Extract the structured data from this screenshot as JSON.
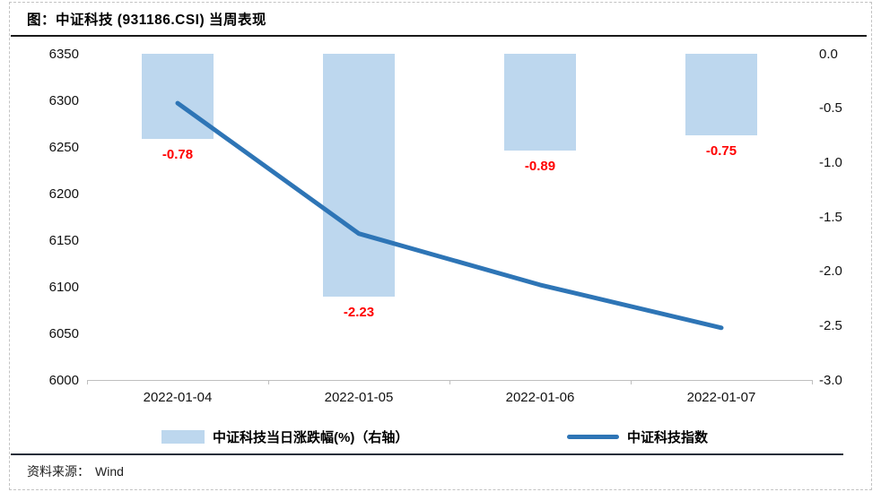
{
  "page": {
    "title": "图：中证科技 (931186.CSI) 当周表现",
    "source_label": "资料来源：",
    "source_value": "Wind"
  },
  "colors": {
    "bar_fill": "#BDD7EE",
    "line_stroke": "#2E75B6",
    "data_label": "#FF0000",
    "axis_line": "#BFBFBF",
    "text": "#111111"
  },
  "legend": [
    {
      "type": "bar",
      "label": "中证科技当日涨跌幅(%)（右轴）"
    },
    {
      "type": "line",
      "label": "中证科技指数"
    }
  ],
  "chart_data": {
    "type": "bar+line combo",
    "categories": [
      "2022-01-04",
      "2022-01-05",
      "2022-01-06",
      "2022-01-07"
    ],
    "series": [
      {
        "name": "中证科技当日涨跌幅(%)（右轴）",
        "type": "bar",
        "axis": "right",
        "values": [
          -0.78,
          -2.23,
          -0.89,
          -0.75
        ],
        "data_labels": [
          "-0.78",
          "-2.23",
          "-0.89",
          "-0.75"
        ]
      },
      {
        "name": "中证科技指数",
        "type": "line",
        "axis": "left",
        "values": [
          6297,
          6157,
          6102,
          6056
        ]
      }
    ],
    "left_axis": {
      "min": 6000,
      "max": 6350,
      "tick_labels": [
        "6350",
        "6300",
        "6250",
        "6200",
        "6150",
        "6100",
        "6050",
        "6000"
      ]
    },
    "right_axis": {
      "min": -3.0,
      "max": 0.0,
      "tick_labels": [
        "0.0",
        "-0.5",
        "-1.0",
        "-1.5",
        "-2.0",
        "-2.5",
        "-3.0"
      ]
    },
    "grid": false,
    "legend_position": "bottom",
    "title": "图：中证科技 (931186.CSI) 当周表现"
  }
}
